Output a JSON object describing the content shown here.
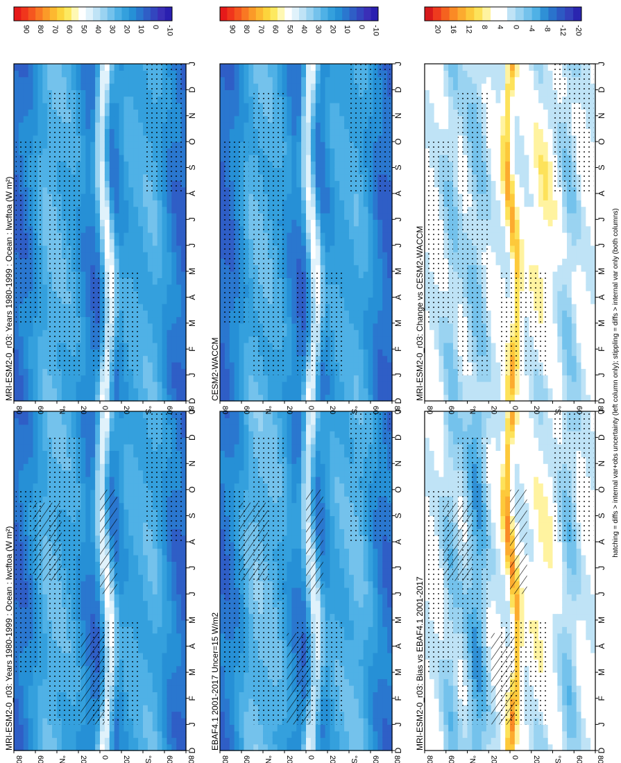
{
  "figure": {
    "footnote": "hatching = diffs > internal var+obs uncertainty (left column only); stippling = diffs > internal var only (both columns)",
    "orientation": "rotated 90 degrees clockwise (read with head tilted right)"
  },
  "chart_data": [
    {
      "id": "p1",
      "type": "heatmap",
      "title": "MRI-ESM2-0_r03: Years 1980-1999 : Ocean : lwcftoa (W m²)",
      "x_ticks": [
        "D",
        "J",
        "F",
        "M",
        "A",
        "M",
        "J",
        "J",
        "A",
        "S",
        "O",
        "N",
        "D",
        "J"
      ],
      "y_ticks": [
        "80",
        "60",
        "°N",
        "20",
        "0",
        "20",
        "°S",
        "60",
        "80"
      ],
      "ylim": [
        -90,
        90
      ],
      "colorbar": [
        "90",
        "80",
        "70",
        "60",
        "50",
        "40",
        "30",
        "20",
        "10",
        "0",
        "-10"
      ],
      "clim": [
        -15,
        95
      ],
      "values_W_m2": {
        "eq_peak": 48,
        "tropics_sh": 28,
        "midlat": 22,
        "polar": 5
      },
      "hatching": true,
      "stippling": true
    },
    {
      "id": "p2",
      "type": "heatmap",
      "title": "MRI-ESM2-0_r03: Years 1980-1999 : Ocean : lwcftoa (W m²)",
      "x_ticks": [
        "D",
        "J",
        "F",
        "M",
        "A",
        "M",
        "J",
        "J",
        "A",
        "S",
        "O",
        "N",
        "D",
        "J"
      ],
      "y_ticks": [
        "80",
        "60",
        "°N",
        "20",
        "0",
        "20",
        "°S",
        "60",
        "80"
      ],
      "ylim": [
        -90,
        90
      ],
      "colorbar": [
        "90",
        "80",
        "70",
        "60",
        "50",
        "40",
        "30",
        "20",
        "10",
        "0",
        "-10"
      ],
      "clim": [
        -15,
        95
      ],
      "values_W_m2": {
        "eq_peak": 48,
        "tropics_sh": 28,
        "midlat": 22,
        "polar": 5
      },
      "hatching": false,
      "stippling": true
    },
    {
      "id": "p3",
      "type": "heatmap",
      "title": "EBAF4.1 2001-2017 Uncer=15 W/m2",
      "x_ticks": [
        "D",
        "J",
        "F",
        "M",
        "A",
        "M",
        "J",
        "J",
        "A",
        "S",
        "O",
        "N",
        "D",
        "J"
      ],
      "y_ticks": [
        "80",
        "60",
        "°N",
        "20",
        "0",
        "20",
        "°S",
        "60",
        "80"
      ],
      "ylim": [
        -90,
        90
      ],
      "colorbar": [
        "90",
        "80",
        "70",
        "60",
        "50",
        "40",
        "30",
        "20",
        "10",
        "0",
        "-10"
      ],
      "clim": [
        -15,
        95
      ],
      "values_W_m2": {
        "eq_peak": 44,
        "tropics_sh": 30,
        "midlat": 24,
        "polar": 6
      },
      "hatching": true,
      "stippling": true
    },
    {
      "id": "p4",
      "type": "heatmap",
      "title": "CESM2-WACCM",
      "x_ticks": [
        "D",
        "J",
        "F",
        "M",
        "A",
        "M",
        "J",
        "J",
        "A",
        "S",
        "O",
        "N",
        "D",
        "J"
      ],
      "y_ticks": [
        "80",
        "60",
        "°N",
        "20",
        "0",
        "20",
        "°S",
        "60",
        "80"
      ],
      "ylim": [
        -90,
        90
      ],
      "colorbar": [
        "90",
        "80",
        "70",
        "60",
        "50",
        "40",
        "30",
        "20",
        "10",
        "0",
        "-10"
      ],
      "clim": [
        -15,
        95
      ],
      "values_W_m2": {
        "eq_peak": 50,
        "tropics_sh": 29,
        "midlat": 21,
        "polar": 4
      },
      "hatching": false,
      "stippling": true
    },
    {
      "id": "p5",
      "type": "heatmap",
      "title": "MRI-ESM2-0_r03: Bias vs EBAF4.1 2001-2017",
      "x_ticks": [
        "D",
        "J",
        "F",
        "M",
        "A",
        "M",
        "J",
        "J",
        "A",
        "S",
        "O",
        "N",
        "D",
        "J"
      ],
      "y_ticks": [
        "80",
        "60",
        "°N",
        "20",
        "0",
        "20",
        "°S",
        "60",
        "80"
      ],
      "ylim": [
        -90,
        90
      ],
      "colorbar": [
        "20",
        "16",
        "12",
        "8",
        "4",
        "0",
        "-4",
        "-8",
        "-12",
        "-20"
      ],
      "clim": [
        -24,
        24
      ],
      "values_W_m2": {
        "eq_bias": 12,
        "nh_tropics": 4,
        "sh_subtropics": -10,
        "midlat": -6
      },
      "hatching": true,
      "stippling": true
    },
    {
      "id": "p6",
      "type": "heatmap",
      "title": "MRI-ESM2-0_r03: Change vs CESM2-WACCM",
      "x_ticks": [
        "D",
        "J",
        "F",
        "M",
        "A",
        "M",
        "J",
        "J",
        "A",
        "S",
        "O",
        "N",
        "D",
        "J"
      ],
      "y_ticks": [
        "80",
        "60",
        "°N",
        "20",
        "0",
        "20",
        "°S",
        "60",
        "80"
      ],
      "ylim": [
        -90,
        90
      ],
      "colorbar": [
        "20",
        "16",
        "12",
        "8",
        "4",
        "0",
        "-4",
        "-8",
        "-12",
        "-20"
      ],
      "clim": [
        -24,
        24
      ],
      "values_W_m2": {
        "eq_change": 10,
        "nh_tropics": 5,
        "sh_subtropics": -6,
        "midlat": -5
      },
      "hatching": false,
      "stippling": true
    }
  ],
  "palettes": {
    "abs": [
      "#e61a1a",
      "#f0361c",
      "#f5561f",
      "#f97823",
      "#fb9a28",
      "#fdb830",
      "#fdd43c",
      "#fde960",
      "#fff8b4",
      "#ffffff",
      "#e0f2fb",
      "#bfe3f6",
      "#9ad3f1",
      "#74c2ec",
      "#4fb1e6",
      "#34a0dd",
      "#2690d6",
      "#2a77cf",
      "#2f5ec6",
      "#3346bf",
      "#3a2fb7",
      "#2a1fb0"
    ],
    "diff": [
      "#d7191c",
      "#ee3b1e",
      "#f5621f",
      "#fa8a25",
      "#fcab2f",
      "#fdc93b",
      "#fde25a",
      "#fff3a0",
      "#ffffff",
      "#ffffff",
      "#bfe3f6",
      "#9ad3f1",
      "#74c2ec",
      "#4fb1e6",
      "#2f90d6",
      "#2a73cc",
      "#2d59c3",
      "#3341bb",
      "#2a25af"
    ]
  }
}
